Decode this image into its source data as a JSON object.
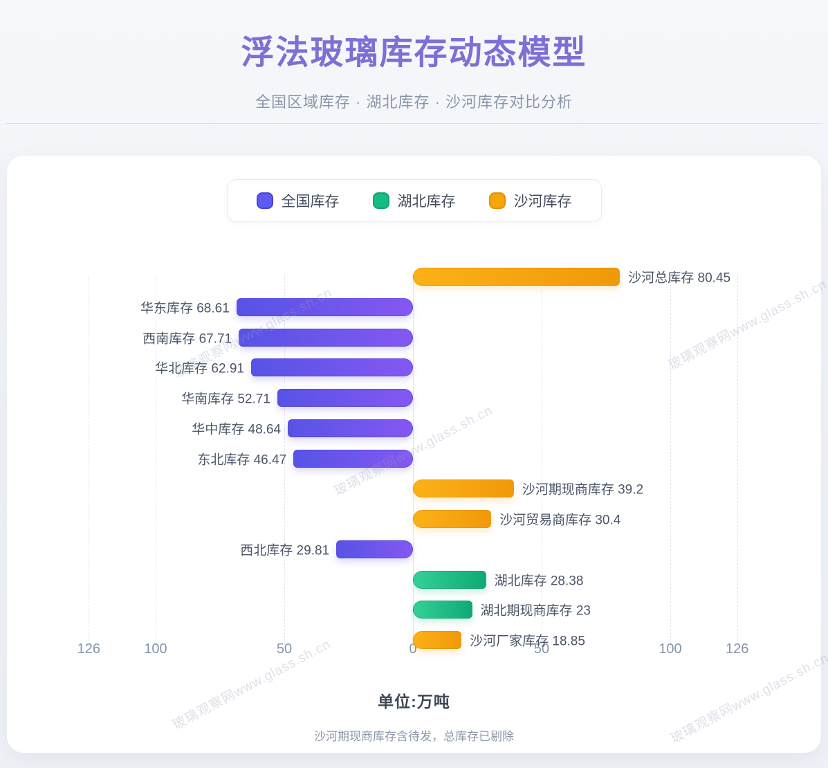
{
  "header": {
    "title": "浮法玻璃库存动态模型",
    "subtitle": "全国区域库存 · 湖北库存 · 沙河库存对比分析"
  },
  "legend": {
    "items": [
      {
        "label": "全国库存",
        "color": "#5f5bf0",
        "border": "#4a43d8",
        "key": "national"
      },
      {
        "label": "湖北库存",
        "color": "#14bd84",
        "border": "#0fa371",
        "key": "hubei"
      },
      {
        "label": "沙河库存",
        "color": "#f6a60b",
        "border": "#e09204",
        "key": "shahe"
      }
    ]
  },
  "chart_data": {
    "type": "bar",
    "orientation": "diverging-horizontal",
    "title": "浮法玻璃库存动态模型",
    "unit_label": "单位:万吨",
    "footnote": "沙河期现商库存含待发，总库存已剔除",
    "xlim": [
      -126,
      126
    ],
    "axis_tick_values": [
      -126,
      -100,
      -50,
      0,
      50,
      100,
      126
    ],
    "axis_ticks_display": [
      "126",
      "100",
      "50",
      "0",
      "50",
      "100",
      "126"
    ],
    "grid": "vertical-dashed",
    "legend_position": "top-center",
    "series_colors": {
      "全国库存": "#5b57ea",
      "湖北库存": "#13b981",
      "沙河库存": "#f6a60b"
    },
    "bars": [
      {
        "label": "沙河总库存",
        "value": 80.45,
        "series": "沙河库存",
        "direction": "right"
      },
      {
        "label": "华东库存",
        "value": 68.61,
        "series": "全国库存",
        "direction": "left"
      },
      {
        "label": "西南库存",
        "value": 67.71,
        "series": "全国库存",
        "direction": "left"
      },
      {
        "label": "华北库存",
        "value": 62.91,
        "series": "全国库存",
        "direction": "left"
      },
      {
        "label": "华南库存",
        "value": 52.71,
        "series": "全国库存",
        "direction": "left"
      },
      {
        "label": "华中库存",
        "value": 48.64,
        "series": "全国库存",
        "direction": "left"
      },
      {
        "label": "东北库存",
        "value": 46.47,
        "series": "全国库存",
        "direction": "left"
      },
      {
        "label": "沙河期现商库存",
        "value": 39.2,
        "series": "沙河库存",
        "direction": "right"
      },
      {
        "label": "沙河贸易商库存",
        "value": 30.4,
        "series": "沙河库存",
        "direction": "right"
      },
      {
        "label": "西北库存",
        "value": 29.81,
        "series": "全国库存",
        "direction": "left"
      },
      {
        "label": "湖北库存",
        "value": 28.38,
        "series": "湖北库存",
        "direction": "right"
      },
      {
        "label": "湖北期现商库存",
        "value": 23,
        "series": "湖北库存",
        "direction": "right"
      },
      {
        "label": "沙河厂家库存",
        "value": 18.85,
        "series": "沙河库存",
        "direction": "right"
      }
    ]
  },
  "watermark": {
    "text": "玻璃观察网www.glass.sh.cn"
  }
}
